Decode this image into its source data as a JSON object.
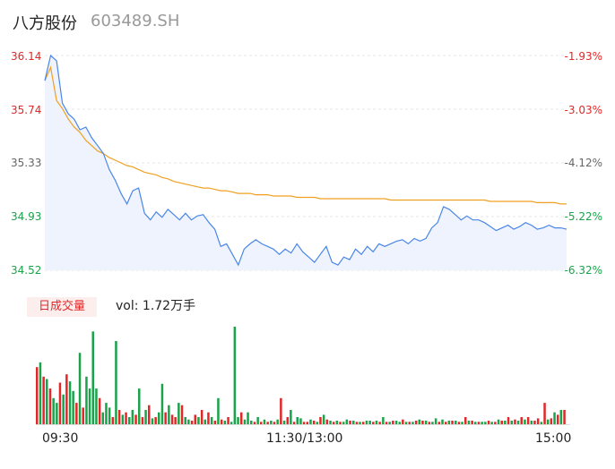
{
  "header": {
    "name": "八方股份",
    "code": "603489.SH"
  },
  "colors": {
    "up": "#e02828",
    "down": "#1aa34a",
    "price_line": "#4a86e8",
    "avg_line": "#f0a020",
    "neutral": "#666666"
  },
  "volume": {
    "badge": "日成交量",
    "label": "vol: 1.72万手"
  },
  "chart_data": [
    {
      "type": "line",
      "y_labels_price": [
        "36.14",
        "35.74",
        "35.33",
        "34.93",
        "34.52"
      ],
      "y_labels_pct": [
        "-1.93%",
        "-3.03%",
        "-4.12%",
        "-5.22%",
        "-6.32%"
      ],
      "ylim": [
        34.52,
        36.14
      ],
      "x_labels": [
        "09:30",
        "11:30/13:00",
        "15:00"
      ],
      "series": [
        {
          "values": [
            35.95,
            36.14,
            36.1,
            35.78,
            35.7,
            35.66,
            35.58,
            35.6,
            35.52,
            35.46,
            35.4,
            35.28,
            35.2,
            35.1,
            35.02,
            35.12,
            35.14,
            34.95,
            34.9,
            34.96,
            34.92,
            34.98,
            34.94,
            34.9,
            34.95,
            34.9,
            34.93,
            34.94,
            34.88,
            34.83,
            34.7,
            34.72,
            34.64,
            34.56,
            34.68,
            34.72,
            34.75,
            34.72,
            34.7,
            34.68,
            34.64,
            34.68,
            34.65,
            34.72,
            34.66,
            34.62,
            34.58,
            34.64,
            34.7,
            34.58,
            34.56,
            34.62,
            34.6,
            34.68,
            34.64,
            34.7,
            34.66,
            34.72,
            34.7,
            34.72,
            34.74,
            34.75,
            34.72,
            34.76,
            34.74,
            34.76,
            34.84,
            34.88,
            35.0,
            34.98,
            34.94,
            34.9,
            34.93,
            34.9,
            34.9,
            34.88,
            34.85,
            34.82,
            34.84,
            34.86,
            34.83,
            34.85,
            34.88,
            34.86,
            34.83,
            34.84,
            34.86,
            34.84,
            34.84,
            34.83
          ]
        },
        {
          "values": [
            35.95,
            36.05,
            35.8,
            35.74,
            35.66,
            35.6,
            35.56,
            35.5,
            35.46,
            35.42,
            35.4,
            35.37,
            35.35,
            35.33,
            35.31,
            35.3,
            35.28,
            35.26,
            35.25,
            35.24,
            35.22,
            35.21,
            35.19,
            35.18,
            35.17,
            35.16,
            35.15,
            35.14,
            35.14,
            35.13,
            35.12,
            35.12,
            35.11,
            35.1,
            35.1,
            35.1,
            35.09,
            35.09,
            35.09,
            35.08,
            35.08,
            35.08,
            35.08,
            35.07,
            35.07,
            35.07,
            35.07,
            35.06,
            35.06,
            35.06,
            35.06,
            35.06,
            35.06,
            35.06,
            35.06,
            35.06,
            35.06,
            35.06,
            35.06,
            35.05,
            35.05,
            35.05,
            35.05,
            35.05,
            35.05,
            35.05,
            35.05,
            35.05,
            35.05,
            35.05,
            35.05,
            35.05,
            35.05,
            35.05,
            35.05,
            35.05,
            35.04,
            35.04,
            35.04,
            35.04,
            35.04,
            35.04,
            35.04,
            35.04,
            35.03,
            35.03,
            35.03,
            35.03,
            35.02,
            35.02
          ]
        }
      ]
    },
    {
      "type": "bar",
      "volumes": [
        48,
        52,
        40,
        38,
        30,
        22,
        18,
        35,
        25,
        42,
        36,
        28,
        18,
        60,
        14,
        40,
        30,
        78,
        30,
        22,
        10,
        18,
        14,
        6,
        70,
        12,
        8,
        10,
        6,
        12,
        8,
        30,
        6,
        12,
        16,
        5,
        6,
        10,
        34,
        10,
        16,
        8,
        6,
        18,
        16,
        6,
        4,
        3,
        8,
        6,
        12,
        4,
        10,
        6,
        3,
        22,
        4,
        3,
        6,
        2,
        82,
        6,
        10,
        4,
        10,
        3,
        2,
        6,
        2,
        4,
        2,
        3,
        2,
        4,
        22,
        3,
        6,
        12,
        2,
        6,
        5,
        2,
        2,
        4,
        3,
        2,
        6,
        8,
        4,
        3,
        2,
        3,
        2,
        2,
        4,
        3,
        3,
        2,
        2,
        2,
        3,
        3,
        2,
        3,
        2,
        6,
        2,
        2,
        3,
        3,
        2,
        4,
        2,
        2,
        2,
        3,
        4,
        3,
        3,
        2,
        2,
        5,
        2,
        4,
        2,
        3,
        3,
        3,
        2,
        2,
        6,
        3,
        3,
        2,
        2,
        2,
        2,
        3,
        2,
        2,
        4,
        3,
        3,
        6,
        3,
        4,
        3,
        6,
        4,
        6,
        3,
        3,
        5,
        2,
        18,
        4,
        5,
        10,
        8,
        12,
        12
      ],
      "directions": [
        "u",
        "d",
        "u",
        "d",
        "u",
        "d",
        "d",
        "u",
        "d",
        "u",
        "d",
        "d",
        "u",
        "d",
        "u",
        "d",
        "d",
        "d",
        "d",
        "u",
        "d",
        "d",
        "d",
        "u",
        "d",
        "u",
        "d",
        "u",
        "d",
        "d",
        "u",
        "d",
        "u",
        "d",
        "u",
        "d",
        "u",
        "d",
        "d",
        "u",
        "d",
        "u",
        "u",
        "d",
        "u",
        "d",
        "d",
        "u",
        "u",
        "d",
        "u",
        "d",
        "u",
        "d",
        "u",
        "d",
        "u",
        "d",
        "u",
        "d",
        "d",
        "d",
        "u",
        "d",
        "d",
        "d",
        "u",
        "d",
        "u",
        "d",
        "u",
        "d",
        "u",
        "d",
        "u",
        "d",
        "u",
        "d",
        "u",
        "d",
        "d",
        "u",
        "u",
        "d",
        "u",
        "d",
        "u",
        "d",
        "u",
        "d",
        "u",
        "d",
        "u",
        "d",
        "d",
        "u",
        "d",
        "u",
        "d",
        "u",
        "d",
        "d",
        "u",
        "d",
        "u",
        "d",
        "u",
        "d",
        "u",
        "d",
        "d",
        "u",
        "d",
        "u",
        "d",
        "u",
        "d",
        "u",
        "d",
        "u",
        "d",
        "d",
        "u",
        "d",
        "u",
        "d",
        "u",
        "d",
        "u",
        "d",
        "u",
        "d",
        "u",
        "d",
        "u",
        "d",
        "d",
        "u",
        "d",
        "u",
        "d",
        "u",
        "d",
        "u",
        "d",
        "u",
        "d",
        "u",
        "d",
        "u",
        "d",
        "u",
        "u",
        "d",
        "u",
        "d",
        "u",
        "d",
        "u",
        "d",
        "u"
      ]
    }
  ]
}
